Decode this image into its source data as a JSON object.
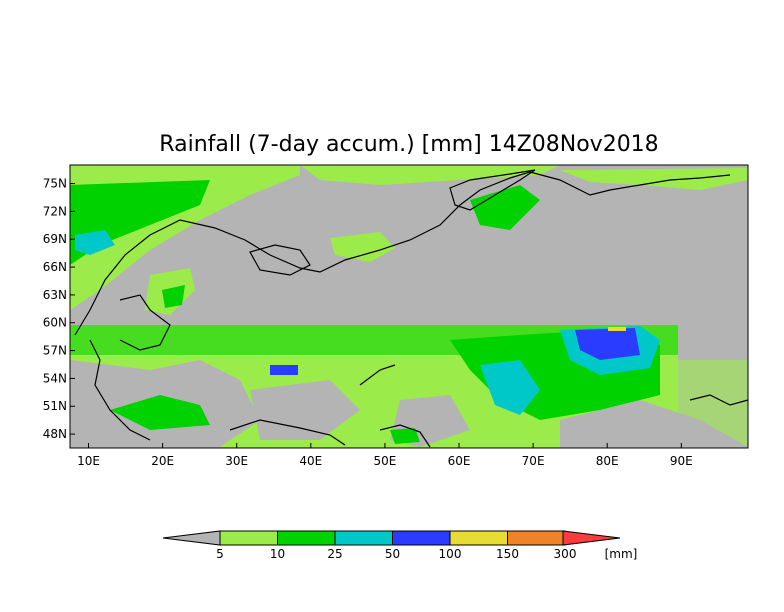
{
  "title": "Rainfall (7-day accum.) [mm] 14Z08Nov2018",
  "map": {
    "lat_labels": [
      "75N",
      "72N",
      "69N",
      "66N",
      "63N",
      "60N",
      "57N",
      "54N",
      "51N",
      "48N"
    ],
    "lon_labels": [
      "10E",
      "20E",
      "30E",
      "40E",
      "50E",
      "60E",
      "70E",
      "80E",
      "90E"
    ],
    "lat_range": [
      46.5,
      77.0
    ],
    "lon_range": [
      7.5,
      99.0
    ],
    "missing_color": "#b4b4b4",
    "coverage_note_boundary_lat": 60
  },
  "colorbar": {
    "unit": "[mm]",
    "thresholds": [
      "5",
      "10",
      "25",
      "50",
      "100",
      "150",
      "300"
    ],
    "colors": [
      "#b4b4b4",
      "#9beb4a",
      "#00d200",
      "#00c8c8",
      "#2a3cff",
      "#e6dc32",
      "#f08228",
      "#fa3c3c"
    ]
  },
  "rain_palette": {
    "light": "#9beb4a",
    "moderate": "#00d200",
    "heavy": "#00c8c8",
    "very_heavy": "#2a3cff",
    "extreme": "#e6dc32",
    "missing": "#b4b4b4"
  }
}
